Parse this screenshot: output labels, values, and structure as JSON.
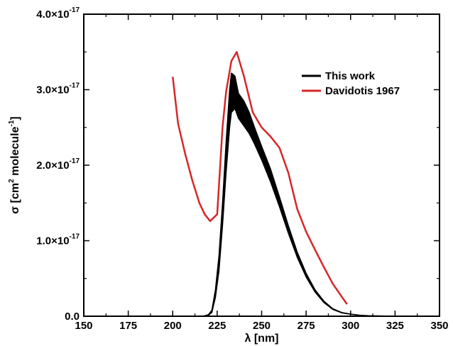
{
  "chart_data": {
    "type": "line",
    "title": "",
    "xlabel": "λ [nm]",
    "ylabel": {
      "base": "σ [cm",
      "sup1": "2",
      "mid": " molecule",
      "sup2": "-1",
      "end": "]"
    },
    "xlim": [
      150,
      350
    ],
    "ylim": [
      0,
      4e-17
    ],
    "x_ticks": [
      150,
      175,
      200,
      225,
      250,
      275,
      300,
      325,
      350
    ],
    "y_ticks": [
      {
        "value": 0,
        "mant": "0.0",
        "exp": ""
      },
      {
        "value": 1e-17,
        "mant": "1.0×10",
        "exp": "-17"
      },
      {
        "value": 2e-17,
        "mant": "2.0×10",
        "exp": "-17"
      },
      {
        "value": 3e-17,
        "mant": "3.0×10",
        "exp": "-17"
      },
      {
        "value": 4e-17,
        "mant": "4.0×10",
        "exp": "-17"
      }
    ],
    "grid": false,
    "legend_position": "top-right",
    "series": [
      {
        "name": "This work",
        "color": "#000000",
        "style": "band",
        "x": [
          217,
          220,
          222,
          224,
          226,
          228,
          230,
          232,
          233,
          235,
          237,
          240,
          243,
          246,
          250,
          255,
          260,
          265,
          270,
          275,
          280,
          285,
          290,
          295,
          300,
          305,
          310,
          320,
          330,
          340,
          350
        ],
        "lower": [
          0,
          1e-19,
          5e-19,
          2.5e-18,
          6e-18,
          1.2e-17,
          1.9e-17,
          2.5e-17,
          2.7e-17,
          2.75e-17,
          2.62e-17,
          2.52e-17,
          2.42e-17,
          2.28e-17,
          2.07e-17,
          1.78e-17,
          1.45e-17,
          1.1e-17,
          7.8e-18,
          5.2e-18,
          3.2e-18,
          1.8e-18,
          9e-19,
          4.5e-19,
          2.5e-19,
          1.2e-19,
          6e-20,
          2e-20,
          1e-20,
          5e-21,
          0
        ],
        "upper": [
          0,
          2e-19,
          8e-19,
          3.5e-18,
          8e-18,
          1.5e-17,
          2.3e-17,
          3e-17,
          3.22e-17,
          3.18e-17,
          2.95e-17,
          2.85e-17,
          2.7e-17,
          2.5e-17,
          2.25e-17,
          1.95e-17,
          1.58e-17,
          1.2e-17,
          8.5e-18,
          5.7e-18,
          3.5e-18,
          2e-18,
          1e-18,
          5e-19,
          2.8e-19,
          1.4e-19,
          7e-20,
          3e-20,
          1.2e-20,
          6e-21,
          0
        ]
      },
      {
        "name": "Davidotis 1967",
        "color": "#d62728",
        "style": "line",
        "x": [
          200,
          203,
          207,
          211,
          215,
          218,
          221,
          225,
          228,
          230,
          233,
          236,
          240,
          245,
          250,
          255,
          260,
          265,
          270,
          275,
          280,
          285,
          290,
          295,
          298
        ],
        "y": [
          3.17e-17,
          2.55e-17,
          2.15e-17,
          1.8e-17,
          1.5e-17,
          1.35e-17,
          1.26e-17,
          1.35e-17,
          2.5e-17,
          2.97e-17,
          3.38e-17,
          3.5e-17,
          3.18e-17,
          2.7e-17,
          2.5e-17,
          2.38e-17,
          2.23e-17,
          1.9e-17,
          1.42e-17,
          1.12e-17,
          8.8e-18,
          6.5e-18,
          4.3e-18,
          2.6e-18,
          1.6e-18
        ]
      }
    ]
  }
}
